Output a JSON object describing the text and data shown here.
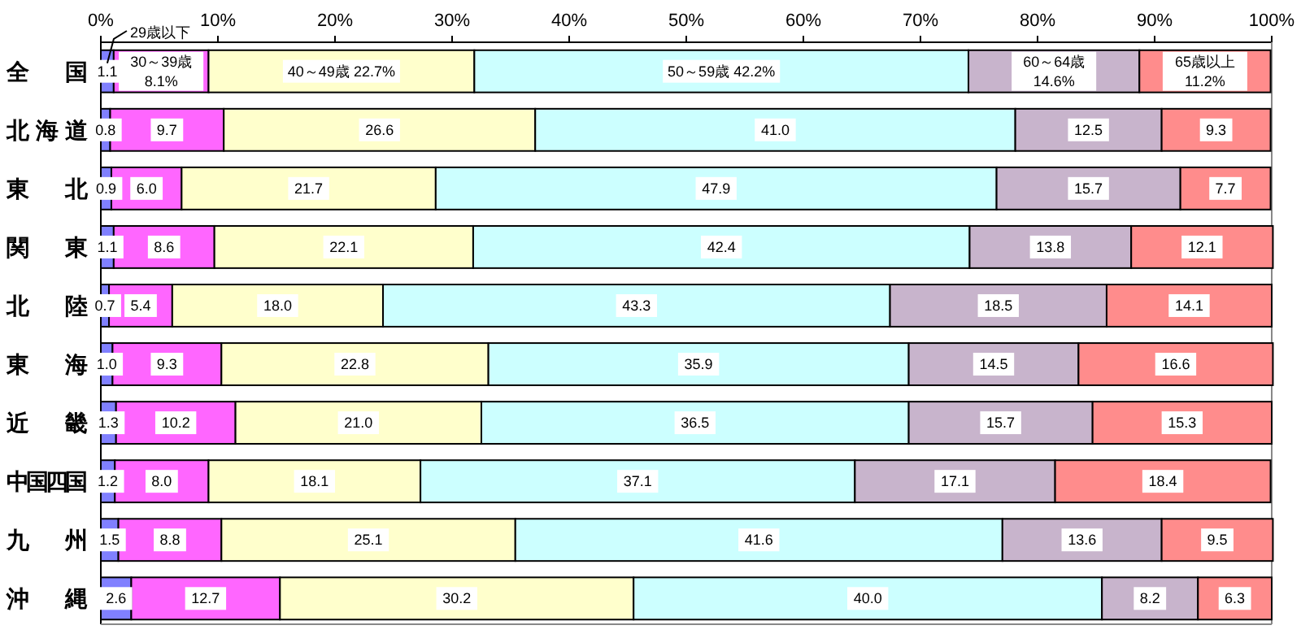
{
  "chart_data": {
    "type": "bar",
    "orientation": "horizontal",
    "stacked": true,
    "categories": [
      "全国",
      "北海道",
      "東北",
      "関東",
      "北陸",
      "東海",
      "近畿",
      "中国四国",
      "九州",
      "沖縄"
    ],
    "xlim": [
      0,
      100
    ],
    "xticks": [
      {
        "value": 0,
        "label": "0%"
      },
      {
        "value": 10,
        "label": "10%"
      },
      {
        "value": 20,
        "label": "20%"
      },
      {
        "value": 30,
        "label": "30%"
      },
      {
        "value": 40,
        "label": "40%"
      },
      {
        "value": 50,
        "label": "50%"
      },
      {
        "value": 60,
        "label": "60%"
      },
      {
        "value": 70,
        "label": "70%"
      },
      {
        "value": 80,
        "label": "80%"
      },
      {
        "value": 90,
        "label": "90%"
      },
      {
        "value": 100,
        "label": "100%"
      }
    ],
    "grid": false,
    "series": [
      {
        "name": "29歳以下",
        "color": "#8080ff",
        "values": [
          1.1,
          0.8,
          0.9,
          1.1,
          0.7,
          1.0,
          1.3,
          1.2,
          1.5,
          2.6
        ],
        "value_labels": [
          "1.1",
          "0.8",
          "0.9",
          "1.1",
          "0.7",
          "1.0",
          "1.3",
          "1.2",
          "1.5",
          "2.6"
        ]
      },
      {
        "name": "30～39歳",
        "color": "#ff66ff",
        "values": [
          8.1,
          9.7,
          6.0,
          8.6,
          5.4,
          9.3,
          10.2,
          8.0,
          8.8,
          12.7
        ],
        "value_labels": [
          "8.1%",
          "9.7",
          "6.0",
          "8.6",
          "5.4",
          "9.3",
          "10.2",
          "8.0",
          "8.8",
          "12.7"
        ]
      },
      {
        "name": "40～49歳",
        "color": "#ffffcc",
        "values": [
          22.7,
          26.6,
          21.7,
          22.1,
          18.0,
          22.8,
          21.0,
          18.1,
          25.1,
          30.2
        ],
        "value_labels": [
          "22.7%",
          "26.6",
          "21.7",
          "22.1",
          "18.0",
          "22.8",
          "21.0",
          "18.1",
          "25.1",
          "30.2"
        ]
      },
      {
        "name": "50～59歳",
        "color": "#ccffff",
        "values": [
          42.2,
          41.0,
          47.9,
          42.4,
          43.3,
          35.9,
          36.5,
          37.1,
          41.6,
          40.0
        ],
        "value_labels": [
          "42.2%",
          "41.0",
          "47.9",
          "42.4",
          "43.3",
          "35.9",
          "36.5",
          "37.1",
          "41.6",
          "40.0"
        ]
      },
      {
        "name": "60～64歳",
        "color": "#c8b4cc",
        "values": [
          14.6,
          12.5,
          15.7,
          13.8,
          18.5,
          14.5,
          15.7,
          17.1,
          13.6,
          8.2
        ],
        "value_labels": [
          "14.6%",
          "12.5",
          "15.7",
          "13.8",
          "18.5",
          "14.5",
          "15.7",
          "17.1",
          "13.6",
          "8.2"
        ]
      },
      {
        "name": "65歳以上",
        "color": "#ff8c8c",
        "values": [
          11.2,
          9.3,
          7.7,
          12.1,
          14.1,
          16.6,
          15.3,
          18.4,
          9.5,
          6.3
        ],
        "value_labels": [
          "11.2%",
          "9.3",
          "7.7",
          "12.1",
          "14.1",
          "16.6",
          "15.3",
          "18.4",
          "9.5",
          "6.3"
        ]
      }
    ]
  }
}
